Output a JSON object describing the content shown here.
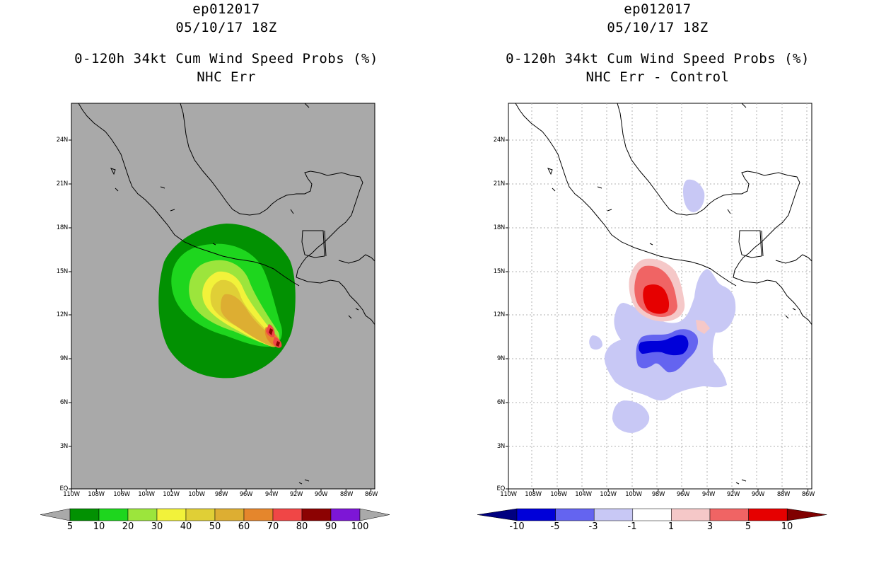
{
  "left_panel": {
    "storm_id": "ep012017",
    "datetime": "05/10/17 18Z",
    "product": "0-120h 34kt Cum Wind Speed Probs (%)",
    "subtitle": "NHC Err",
    "colorbar": {
      "labels": [
        "5",
        "10",
        "20",
        "30",
        "40",
        "50",
        "60",
        "70",
        "80",
        "90",
        "100"
      ],
      "colors": [
        "#029102",
        "#1ed61e",
        "#9ce53c",
        "#f2f23a",
        "#e0cf36",
        "#ddae32",
        "#e5862c",
        "#f04646",
        "#8c0202",
        "#7d16d6"
      ],
      "extend_color": "#a9a9a9"
    },
    "map_background": "#a9a9a9"
  },
  "right_panel": {
    "storm_id": "ep012017",
    "datetime": "05/10/17 18Z",
    "product": "0-120h 34kt Cum Wind Speed Probs (%)",
    "subtitle": "NHC Err - Control",
    "colorbar": {
      "labels": [
        "-10",
        "-5",
        "-3",
        "-1",
        "1",
        "3",
        "5",
        "10"
      ],
      "colors": [
        "#0000d9",
        "#6464f0",
        "#c8c8f5",
        "#ffffff",
        "#f5c8c8",
        "#f06464",
        "#e60000"
      ],
      "extend_low": "#000080",
      "extend_high": "#800000"
    },
    "map_background": "#ffffff"
  },
  "axes": {
    "lat_labels": [
      "24N",
      "21N",
      "18N",
      "15N",
      "12N",
      "9N",
      "6N",
      "3N",
      "EQ"
    ],
    "lon_labels": [
      "110W",
      "108W",
      "106W",
      "104W",
      "102W",
      "100W",
      "98W",
      "96W",
      "94W",
      "92W",
      "90W",
      "88W",
      "86W"
    ]
  }
}
